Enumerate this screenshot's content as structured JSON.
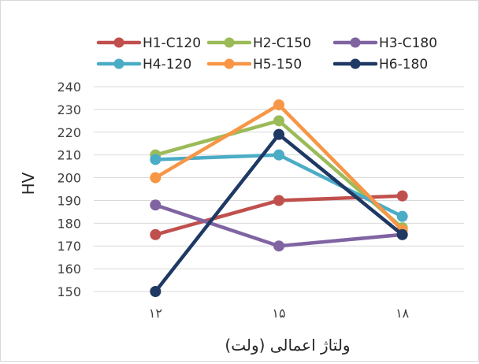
{
  "chart_data": {
    "type": "line",
    "title": "",
    "xlabel": "ولتاژ اعمالی (ولت)",
    "ylabel": "HV",
    "categories": [
      "۱۲",
      "۱۵",
      "۱۸"
    ],
    "ylim": [
      150,
      240
    ],
    "yticks": [
      150,
      160,
      170,
      180,
      190,
      200,
      210,
      220,
      230,
      240
    ],
    "grid": "horizontal",
    "legend_position": "top",
    "series": [
      {
        "name": "H1-C120",
        "color": "#c0504d",
        "values": [
          175,
          190,
          192
        ]
      },
      {
        "name": "H2-C150",
        "color": "#9bbb59",
        "values": [
          210,
          225,
          178
        ]
      },
      {
        "name": "H3-C180",
        "color": "#8064a2",
        "values": [
          188,
          170,
          175
        ]
      },
      {
        "name": "H4-120",
        "color": "#4bacc6",
        "values": [
          208,
          210,
          183
        ]
      },
      {
        "name": "H5-150",
        "color": "#f79646",
        "values": [
          200,
          232,
          177
        ]
      },
      {
        "name": "H6-180",
        "color": "#1f3864",
        "values": [
          150,
          219,
          175
        ]
      }
    ]
  }
}
